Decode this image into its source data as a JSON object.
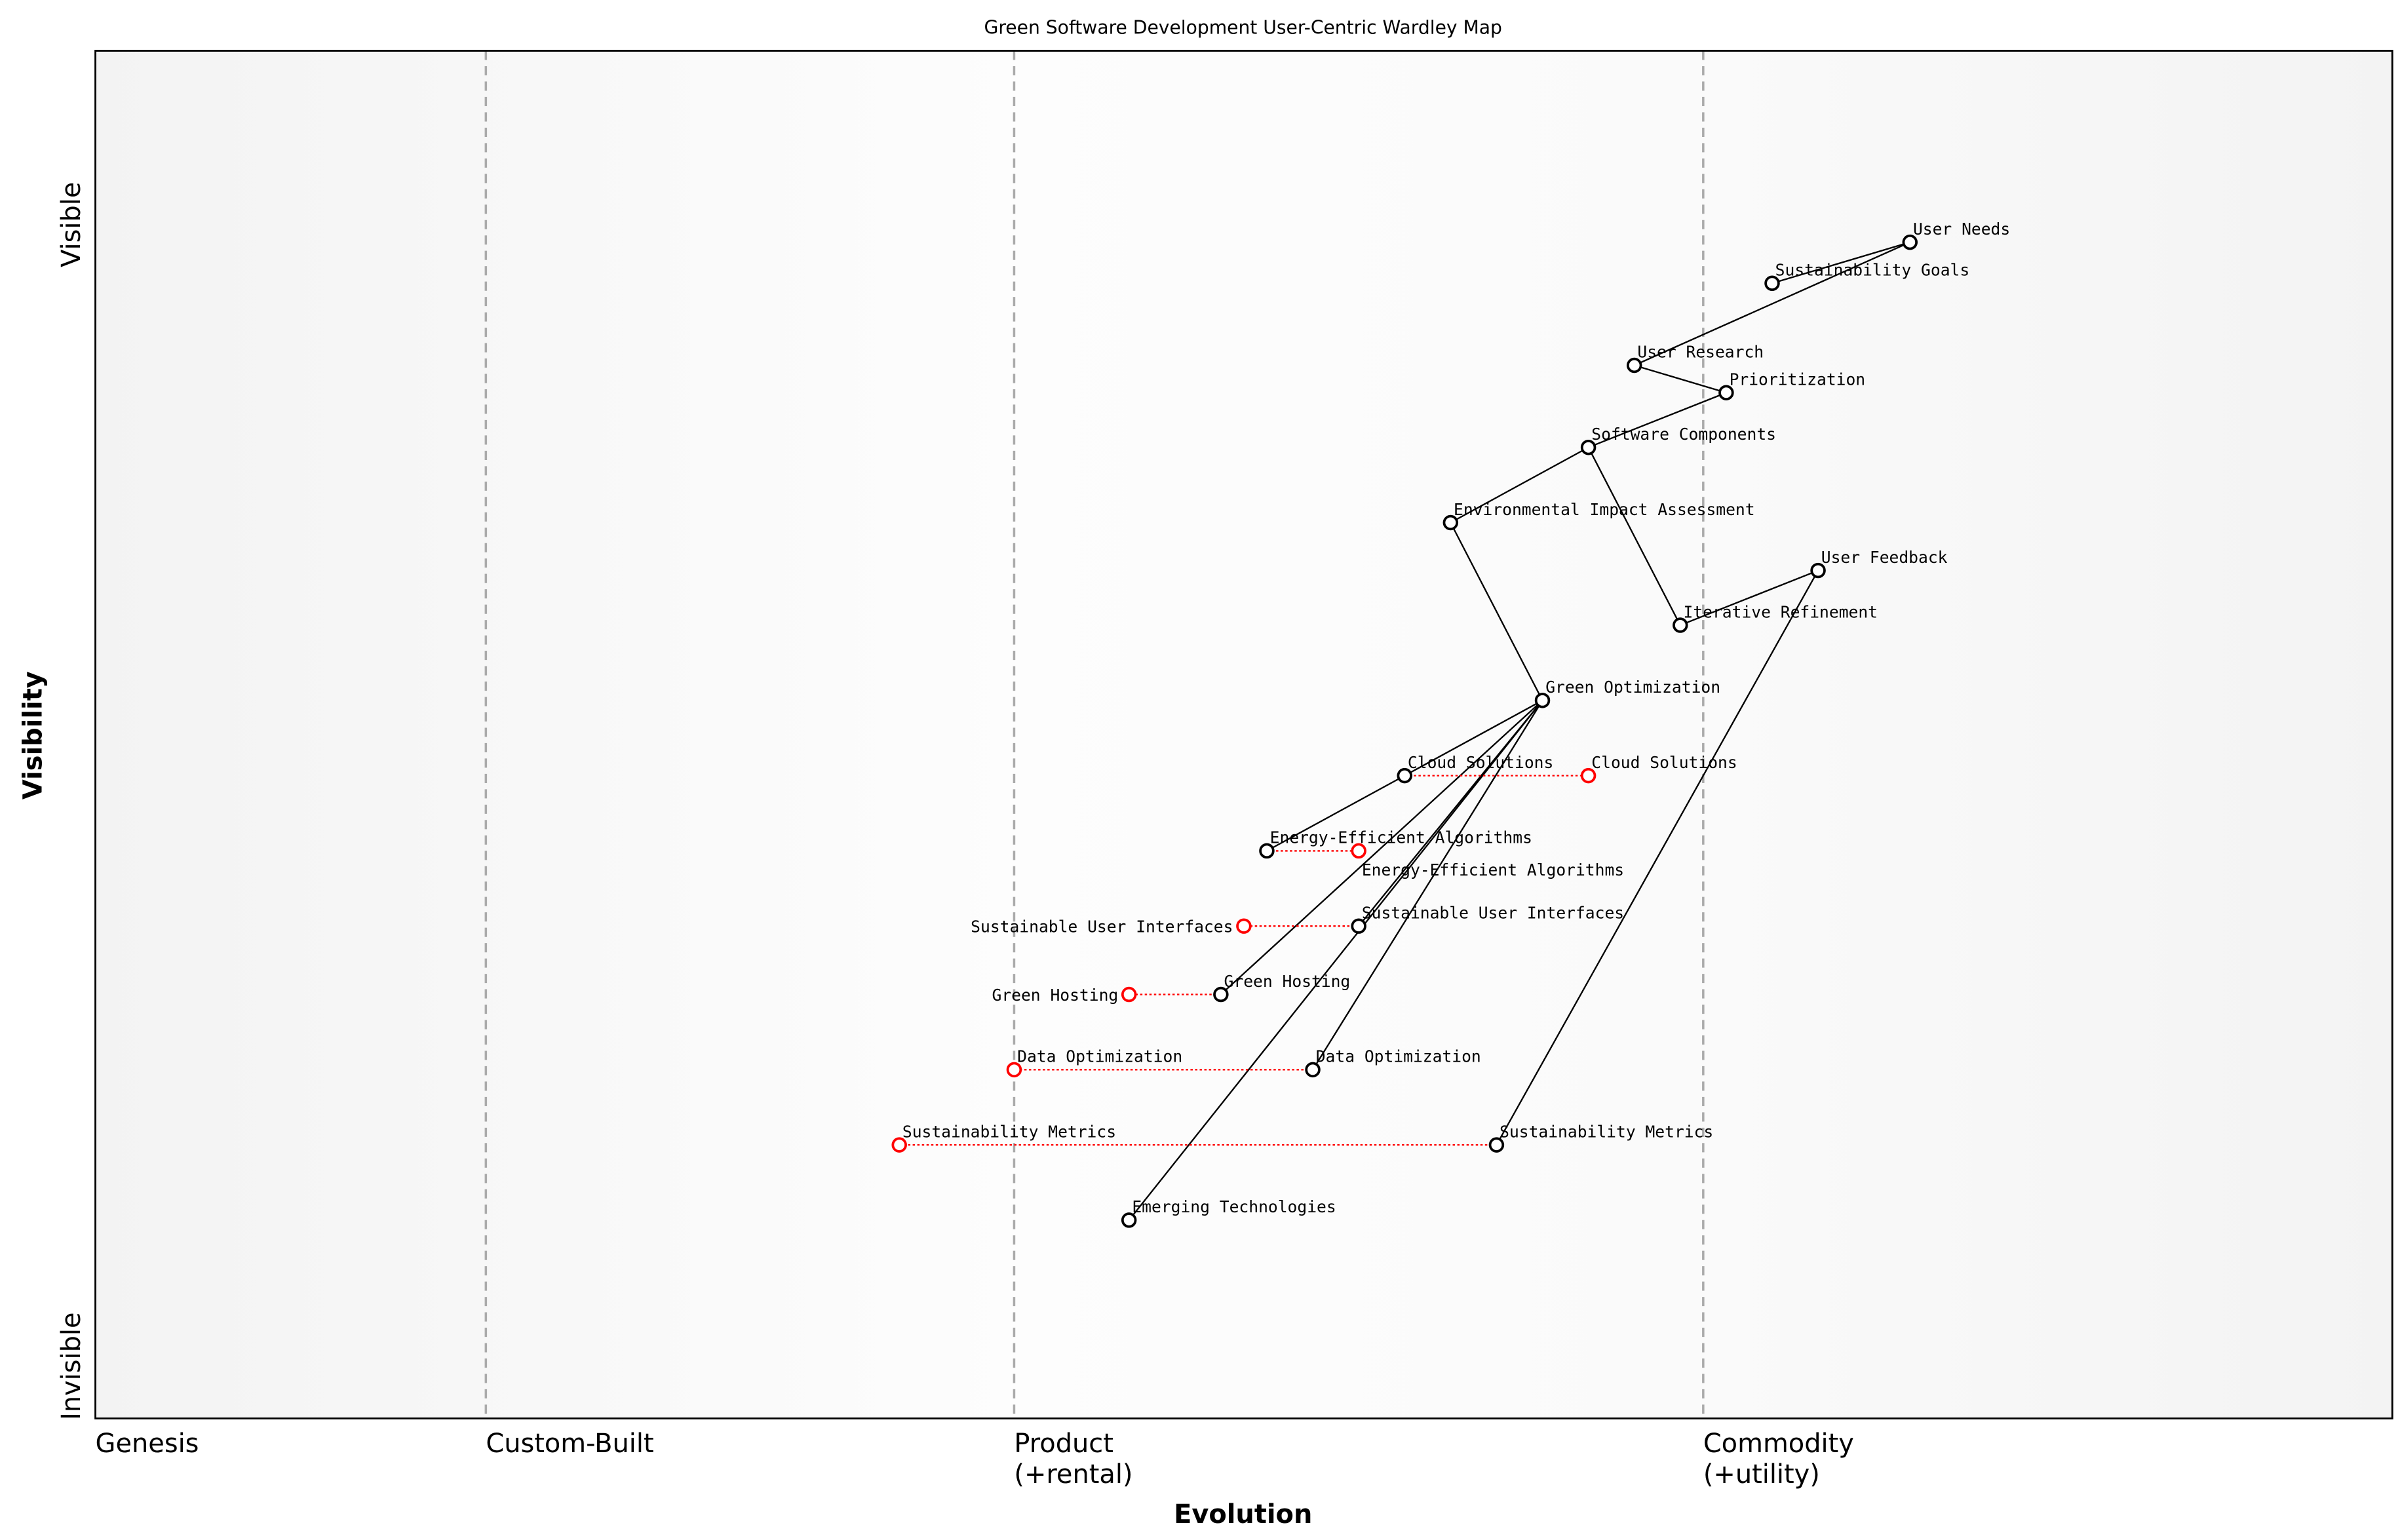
{
  "chart_data": {
    "type": "wardley-map",
    "title": "Green Software Development User-Centric Wardley Map",
    "xlabel": "Evolution",
    "ylabel": "Visibility",
    "y_top_label": "Visible",
    "y_bottom_label": "Invisible",
    "xlim": [
      0,
      1
    ],
    "ylim": [
      0,
      1
    ],
    "stages": [
      {
        "label": "Genesis",
        "x": 0.0
      },
      {
        "label": "Custom-Built",
        "x": 0.17
      },
      {
        "label": "Product\n(+rental)",
        "x": 0.4
      },
      {
        "label": "Commodity\n(+utility)",
        "x": 0.7
      }
    ],
    "colors": {
      "component": "#000000",
      "evolved": "#ff0000",
      "stage_line": "#aaaaaa"
    },
    "components": [
      {
        "name": "User Needs",
        "x": 0.79,
        "y": 0.86
      },
      {
        "name": "Sustainability Goals",
        "x": 0.73,
        "y": 0.83
      },
      {
        "name": "User Research",
        "x": 0.67,
        "y": 0.77
      },
      {
        "name": "Prioritization",
        "x": 0.71,
        "y": 0.75
      },
      {
        "name": "Software Components",
        "x": 0.65,
        "y": 0.71
      },
      {
        "name": "Environmental Impact Assessment",
        "x": 0.59,
        "y": 0.655
      },
      {
        "name": "User Feedback",
        "x": 0.75,
        "y": 0.62
      },
      {
        "name": "Iterative Refinement",
        "x": 0.69,
        "y": 0.58
      },
      {
        "name": "Green Optimization",
        "x": 0.63,
        "y": 0.525
      },
      {
        "name": "Cloud Solutions",
        "x": 0.57,
        "y": 0.47
      },
      {
        "name": "Energy-Efficient Algorithms",
        "x": 0.51,
        "y": 0.415
      },
      {
        "name": "Sustainable User Interfaces",
        "x": 0.55,
        "y": 0.36
      },
      {
        "name": "Green Hosting",
        "x": 0.49,
        "y": 0.31
      },
      {
        "name": "Data Optimization",
        "x": 0.53,
        "y": 0.255
      },
      {
        "name": "Sustainability Metrics",
        "x": 0.61,
        "y": 0.2
      },
      {
        "name": "Emerging Technologies",
        "x": 0.45,
        "y": 0.145
      }
    ],
    "evolutions": [
      {
        "name": "Cloud Solutions",
        "from": 0.57,
        "to": 0.65,
        "y": 0.47
      },
      {
        "name": "Energy-Efficient Algorithms",
        "from": 0.51,
        "to": 0.55,
        "y": 0.415
      },
      {
        "name": "Sustainable User Interfaces",
        "from": 0.55,
        "to": 0.5,
        "y": 0.36
      },
      {
        "name": "Green Hosting",
        "from": 0.49,
        "to": 0.45,
        "y": 0.31
      },
      {
        "name": "Data Optimization",
        "from": 0.53,
        "to": 0.4,
        "y": 0.255
      },
      {
        "name": "Sustainability Metrics",
        "from": 0.61,
        "to": 0.35,
        "y": 0.2
      }
    ],
    "links": [
      [
        "User Needs",
        "Sustainability Goals"
      ],
      [
        "User Needs",
        "User Research"
      ],
      [
        "User Research",
        "Prioritization"
      ],
      [
        "Prioritization",
        "Software Components"
      ],
      [
        "Software Components",
        "Environmental Impact Assessment"
      ],
      [
        "Software Components",
        "Iterative Refinement"
      ],
      [
        "Iterative Refinement",
        "User Feedback"
      ],
      [
        "User Feedback",
        "Sustainability Metrics"
      ],
      [
        "Environmental Impact Assessment",
        "Green Optimization"
      ],
      [
        "Green Optimization",
        "Cloud Solutions"
      ],
      [
        "Cloud Solutions",
        "Energy-Efficient Algorithms"
      ],
      [
        "Green Optimization",
        "Sustainable User Interfaces"
      ],
      [
        "Green Optimization",
        "Green Hosting"
      ],
      [
        "Green Optimization",
        "Data Optimization"
      ],
      [
        "Green Optimization",
        "Emerging Technologies"
      ]
    ]
  }
}
